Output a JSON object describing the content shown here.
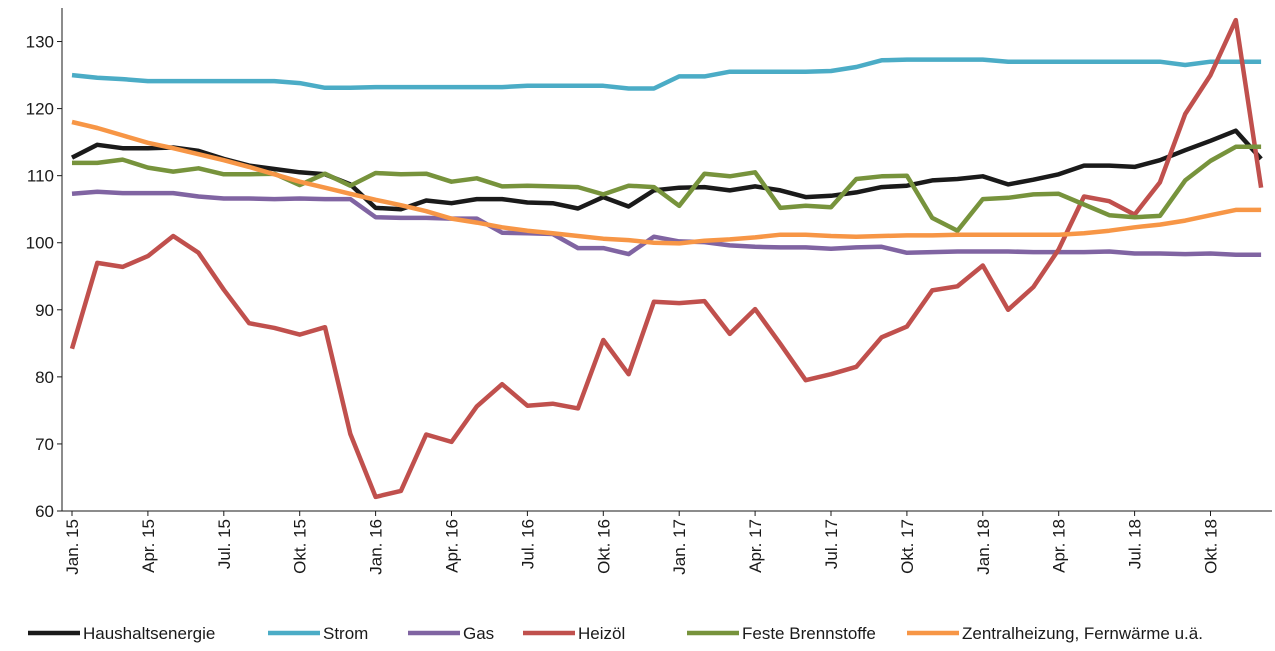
{
  "chart_data": {
    "type": "line",
    "categories": [
      "Jan. 15",
      null,
      null,
      "Apr. 15",
      null,
      null,
      "Jul. 15",
      null,
      null,
      "Okt. 15",
      null,
      null,
      "Jan. 16",
      null,
      null,
      "Apr. 16",
      null,
      null,
      "Jul. 16",
      null,
      null,
      "Okt. 16",
      null,
      null,
      "Jan. 17",
      null,
      null,
      "Apr. 17",
      null,
      null,
      "Jul. 17",
      null,
      null,
      "Okt. 17",
      null,
      null,
      "Jan. 18",
      null,
      null,
      "Apr. 18",
      null,
      null,
      "Jul. 18",
      null,
      null,
      "Okt. 18",
      null,
      null
    ],
    "ylim": [
      60,
      135
    ],
    "yticks": [
      60,
      70,
      80,
      90,
      100,
      110,
      120,
      130
    ],
    "legend": "bottom",
    "series": [
      {
        "name": "Haushaltsenergie",
        "color": "#1a1a1a",
        "values": [
          112.7,
          114.6,
          114.1,
          114.1,
          114.2,
          113.7,
          112.5,
          111.5,
          111,
          110.5,
          110.2,
          108.7,
          105.2,
          105,
          106.3,
          105.9,
          106.5,
          106.5,
          106,
          105.9,
          105.1,
          106.8,
          105.4,
          107.8,
          108.2,
          108.3,
          107.8,
          108.4,
          107.8,
          106.8,
          107,
          107.5,
          108.3,
          108.5,
          109.3,
          109.5,
          109.9,
          108.7,
          109.4,
          110.2,
          111.5,
          111.5,
          111.3,
          112.3,
          113.8,
          115.2,
          116.7,
          112.5
        ]
      },
      {
        "name": "Strom",
        "color": "#4bacc6",
        "values": [
          125,
          124.6,
          124.4,
          124.1,
          124.1,
          124.1,
          124.1,
          124.1,
          124.1,
          123.8,
          123.1,
          123.1,
          123.2,
          123.2,
          123.2,
          123.2,
          123.2,
          123.2,
          123.4,
          123.4,
          123.4,
          123.4,
          123,
          123,
          124.8,
          124.8,
          125.5,
          125.5,
          125.5,
          125.5,
          125.6,
          126.2,
          127.2,
          127.3,
          127.3,
          127.3,
          127.3,
          127,
          127,
          127,
          127,
          127,
          127,
          127,
          126.5,
          127,
          127,
          127
        ]
      },
      {
        "name": "Gas",
        "color": "#8064a2",
        "values": [
          107.3,
          107.6,
          107.4,
          107.4,
          107.4,
          106.9,
          106.6,
          106.6,
          106.5,
          106.6,
          106.5,
          106.5,
          103.8,
          103.7,
          103.7,
          103.6,
          103.6,
          101.5,
          101.4,
          101.3,
          99.2,
          99.2,
          98.3,
          100.9,
          100.2,
          100.1,
          99.6,
          99.4,
          99.3,
          99.3,
          99.1,
          99.3,
          99.4,
          98.5,
          98.6,
          98.7,
          98.7,
          98.7,
          98.6,
          98.6,
          98.6,
          98.7,
          98.4,
          98.4,
          98.3,
          98.4,
          98.2,
          98.2
        ]
      },
      {
        "name": "Heizöl",
        "color": "#c0504d",
        "values": [
          84.2,
          97,
          96.4,
          98,
          101,
          98.5,
          93,
          88,
          87.3,
          86.3,
          87.4,
          71.5,
          62.1,
          63,
          71.4,
          70.3,
          75.6,
          78.9,
          75.7,
          76,
          75.3,
          85.5,
          80.4,
          91.2,
          91,
          91.3,
          86.4,
          90.1,
          84.9,
          79.5,
          80.4,
          81.5,
          85.9,
          87.5,
          92.9,
          93.5,
          96.6,
          90,
          93.4,
          99,
          106.9,
          106.2,
          104.2,
          109,
          119.2,
          125,
          133.2,
          108.2
        ]
      },
      {
        "name": "Feste Brennstoffe",
        "color": "#77933c",
        "values": [
          111.9,
          111.9,
          112.4,
          111.2,
          110.6,
          111.1,
          110.2,
          110.2,
          110.3,
          108.6,
          110.3,
          108.5,
          110.4,
          110.2,
          110.3,
          109.1,
          109.6,
          108.4,
          108.5,
          108.4,
          108.3,
          107.2,
          108.5,
          108.3,
          105.5,
          110.3,
          109.9,
          110.5,
          105.2,
          105.5,
          105.3,
          109.5,
          109.9,
          110,
          103.7,
          101.8,
          106.5,
          106.7,
          107.2,
          107.3,
          105.7,
          104.1,
          103.8,
          104,
          109.3,
          112.2,
          114.3,
          114.3
        ]
      },
      {
        "name": "Zentralheizung, Fernwärme u.ä.",
        "color": "#f79646",
        "values": [
          118,
          117.1,
          116,
          114.9,
          114.1,
          113.2,
          112.3,
          111.3,
          110.2,
          109.1,
          108.2,
          107.3,
          106.4,
          105.6,
          104.7,
          103.6,
          103,
          102.3,
          101.8,
          101.4,
          101,
          100.6,
          100.4,
          100,
          99.9,
          100.3,
          100.5,
          100.8,
          101.2,
          101.2,
          101,
          100.9,
          101,
          101.1,
          101.1,
          101.2,
          101.2,
          101.2,
          101.2,
          101.2,
          101.4,
          101.8,
          102.3,
          102.7,
          103.3,
          104.1,
          104.9,
          104.9
        ]
      }
    ]
  }
}
